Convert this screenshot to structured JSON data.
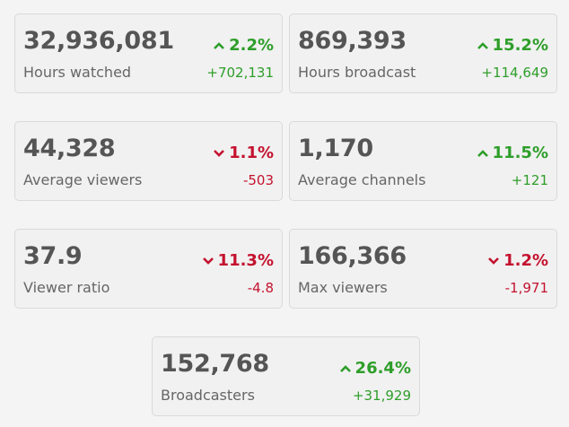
{
  "cards": [
    {
      "value": "32,936,081",
      "label": "Hours watched",
      "change": "2.2%",
      "delta": "+702,131",
      "direction": "up"
    },
    {
      "value": "869,393",
      "label": "Hours broadcast",
      "change": "15.2%",
      "delta": "+114,649",
      "direction": "up"
    },
    {
      "value": "44,328",
      "label": "Average viewers",
      "change": "1.1%",
      "delta": "-503",
      "direction": "down"
    },
    {
      "value": "1,170",
      "label": "Average channels",
      "change": "11.5%",
      "delta": "+121",
      "direction": "up"
    },
    {
      "value": "37.9",
      "label": "Viewer ratio",
      "change": "11.3%",
      "delta": "-4.8",
      "direction": "down"
    },
    {
      "value": "166,366",
      "label": "Max viewers",
      "change": "1.2%",
      "delta": "-1,971",
      "direction": "down"
    },
    {
      "value": "152,768",
      "label": "Broadcasters",
      "change": "26.4%",
      "delta": "+31,929",
      "direction": "up"
    }
  ],
  "colors": {
    "up": "#2e9e2a",
    "down": "#c4122f"
  }
}
